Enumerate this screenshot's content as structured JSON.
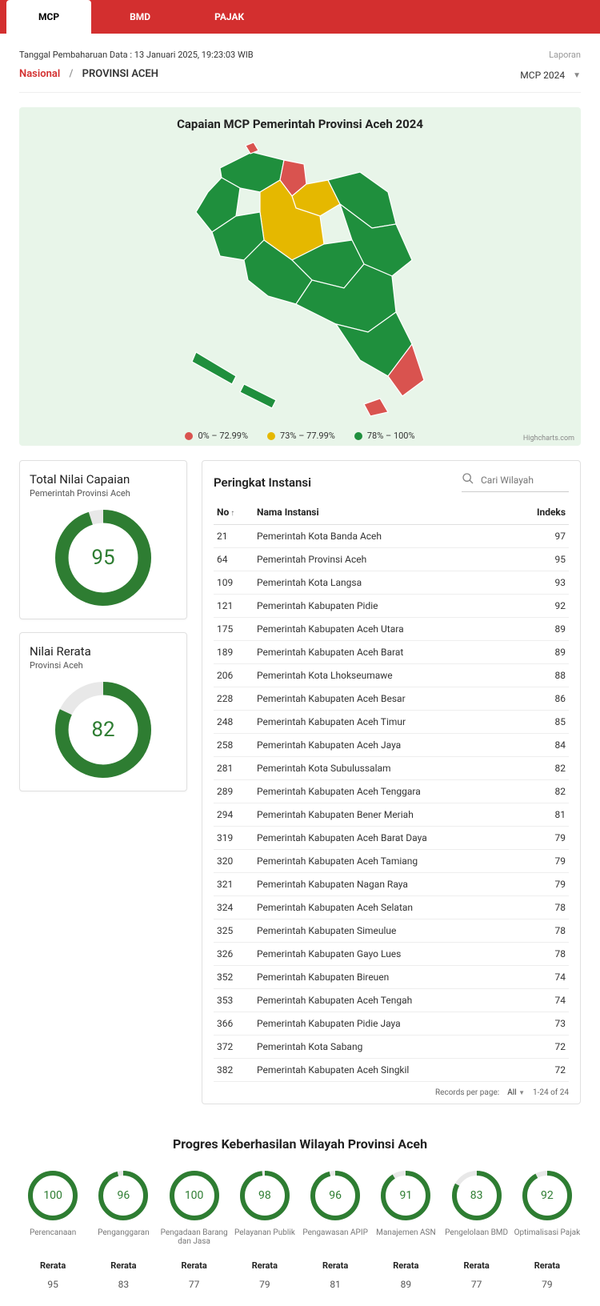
{
  "colors": {
    "red": "#d32f2f",
    "green": "#2e7d32",
    "yellow": "#f59e0b",
    "map_green": "#1f8f3d",
    "map_yellow": "#e5b800",
    "map_red": "#d9534f",
    "map_bg": "#e8f5e9"
  },
  "tabs": [
    {
      "label": "MCP",
      "active": true
    },
    {
      "label": "BMD",
      "active": false
    },
    {
      "label": "PAJAK",
      "active": false
    }
  ],
  "update_label": "Tanggal Pembaharuan Data : 13 Januari 2025, 19:23:03 WIB",
  "laporan_label": "Laporan",
  "breadcrumb": {
    "national": "Nasional",
    "sep": "/",
    "region": "PROVINSI ACEH"
  },
  "period": "MCP 2024",
  "map": {
    "title": "Capaian MCP Pemerintah Provinsi Aceh 2024",
    "legend": [
      {
        "color": "#d9534f",
        "label": "0% – 72.99%"
      },
      {
        "color": "#e5b800",
        "label": "73% – 77.99%"
      },
      {
        "color": "#1f8f3d",
        "label": "78% – 100%"
      }
    ],
    "credit": "Highcharts.com"
  },
  "total_card": {
    "title": "Total Nilai Capaian",
    "sub": "Pemerintah Provinsi Aceh",
    "value": 95
  },
  "rerata_card": {
    "title": "Nilai Rerata",
    "sub": "Provinsi Aceh",
    "value": 82
  },
  "rank": {
    "title": "Peringkat Instansi",
    "search_placeholder": "Cari Wilayah",
    "headers": {
      "no": "No",
      "nama": "Nama Instansi",
      "indeks": "Indeks"
    },
    "rows": [
      {
        "no": 21,
        "nama": "Pemerintah Kota Banda Aceh",
        "indeks": 97
      },
      {
        "no": 64,
        "nama": "Pemerintah Provinsi Aceh",
        "indeks": 95
      },
      {
        "no": 109,
        "nama": "Pemerintah Kota Langsa",
        "indeks": 93
      },
      {
        "no": 121,
        "nama": "Pemerintah Kabupaten Pidie",
        "indeks": 92
      },
      {
        "no": 175,
        "nama": "Pemerintah Kabupaten Aceh Utara",
        "indeks": 89
      },
      {
        "no": 189,
        "nama": "Pemerintah Kabupaten Aceh Barat",
        "indeks": 89
      },
      {
        "no": 206,
        "nama": "Pemerintah Kota Lhokseumawe",
        "indeks": 88
      },
      {
        "no": 228,
        "nama": "Pemerintah Kabupaten Aceh Besar",
        "indeks": 86
      },
      {
        "no": 248,
        "nama": "Pemerintah Kabupaten Aceh Timur",
        "indeks": 85
      },
      {
        "no": 258,
        "nama": "Pemerintah Kabupaten Aceh Jaya",
        "indeks": 84
      },
      {
        "no": 281,
        "nama": "Pemerintah Kota Subulussalam",
        "indeks": 82
      },
      {
        "no": 289,
        "nama": "Pemerintah Kabupaten Aceh Tenggara",
        "indeks": 82
      },
      {
        "no": 294,
        "nama": "Pemerintah Kabupaten Bener Meriah",
        "indeks": 81
      },
      {
        "no": 319,
        "nama": "Pemerintah Kabupaten Aceh Barat Daya",
        "indeks": 79
      },
      {
        "no": 320,
        "nama": "Pemerintah Kabupaten Aceh Tamiang",
        "indeks": 79
      },
      {
        "no": 321,
        "nama": "Pemerintah Kabupaten Nagan Raya",
        "indeks": 79
      },
      {
        "no": 324,
        "nama": "Pemerintah Kabupaten Aceh Selatan",
        "indeks": 78
      },
      {
        "no": 325,
        "nama": "Pemerintah Kabupaten Simeulue",
        "indeks": 78
      },
      {
        "no": 326,
        "nama": "Pemerintah Kabupaten Gayo Lues",
        "indeks": 78
      },
      {
        "no": 352,
        "nama": "Pemerintah Kabupaten Bireuen",
        "indeks": 74
      },
      {
        "no": 353,
        "nama": "Pemerintah Kabupaten Aceh Tengah",
        "indeks": 74
      },
      {
        "no": 366,
        "nama": "Pemerintah Kabupaten Pidie Jaya",
        "indeks": 73
      },
      {
        "no": 372,
        "nama": "Pemerintah Kota Sabang",
        "indeks": 72
      },
      {
        "no": 382,
        "nama": "Pemerintah Kabupaten Aceh Singkil",
        "indeks": 72
      }
    ],
    "pager": {
      "records_label": "Records per page:",
      "all": "All",
      "range": "1-24 of 24"
    }
  },
  "progress": {
    "title": "Progres Keberhasilan Wilayah Provinsi Aceh",
    "rerata_header": "Rerata",
    "items": [
      {
        "label": "Perencanaan",
        "value": 100,
        "rerata": 95
      },
      {
        "label": "Penganggaran",
        "value": 96,
        "rerata": 83
      },
      {
        "label": "Pengadaan Barang dan Jasa",
        "value": 100,
        "rerata": 77
      },
      {
        "label": "Pelayanan Publik",
        "value": 98,
        "rerata": 79
      },
      {
        "label": "Pengawasan APIP",
        "value": 96,
        "rerata": 81
      },
      {
        "label": "Manajemen ASN",
        "value": 91,
        "rerata": 89
      },
      {
        "label": "Pengelolaan BMD",
        "value": 83,
        "rerata": 77
      },
      {
        "label": "Optimalisasi Pajak",
        "value": 92,
        "rerata": 79
      }
    ]
  }
}
